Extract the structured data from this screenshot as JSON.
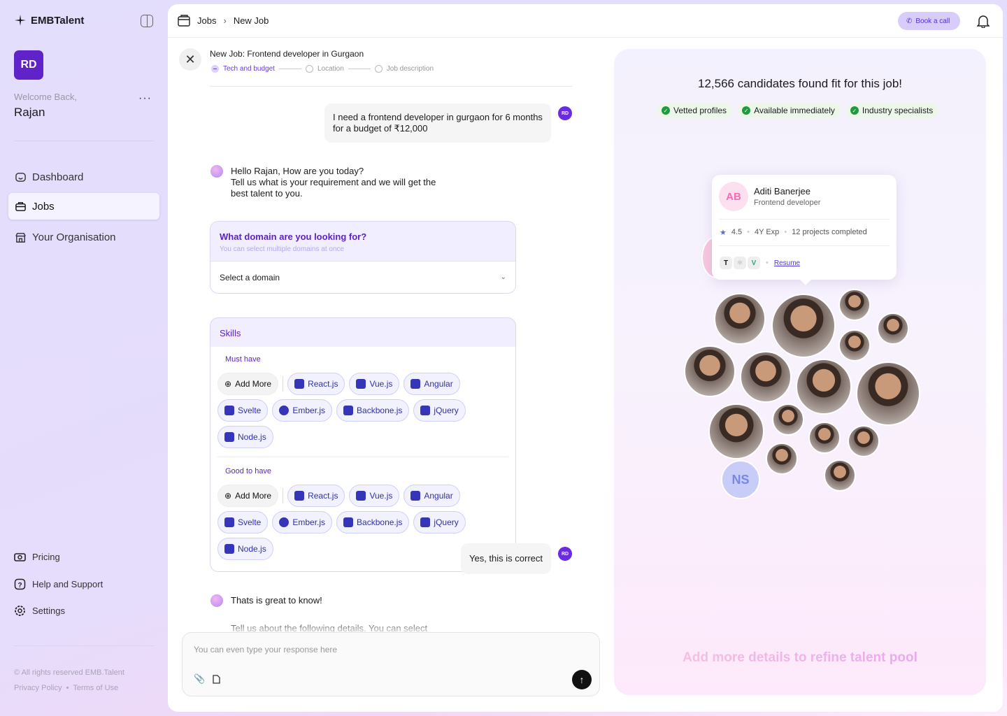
{
  "brand": "EMBTalent",
  "user": {
    "initials": "RD",
    "welcome": "Welcome Back,",
    "name": "Rajan"
  },
  "nav": [
    {
      "label": "Dashboard"
    },
    {
      "label": "Jobs"
    },
    {
      "label": "Your Organisation"
    }
  ],
  "bottom_nav": [
    {
      "label": "Pricing"
    },
    {
      "label": "Help and Support"
    },
    {
      "label": "Settings"
    }
  ],
  "footer": {
    "rights": "All rights reserved EMB.Talent",
    "privacy": "Privacy Policy",
    "terms": "Terms of Use"
  },
  "breadcrumb": [
    "Jobs",
    "New Job"
  ],
  "book_call": "Book a call",
  "job": {
    "title": "New Job: Frontend developer in Gurgaon",
    "steps": [
      "Tech and budget",
      "Location",
      "Job description"
    ],
    "active_step": 0
  },
  "chat": {
    "user_msg_1": "I need a frontend developer in gurgaon for 6 months for a budget of ₹12,000",
    "bot_msg_1": [
      "Hello Rajan, How are you today?",
      "Tell us what is your requirement and we will get the",
      "best talent to you."
    ],
    "domain": {
      "title": "What domain are you looking for?",
      "subtitle": "You can select multiple domains at once",
      "select_value": "Select a domain"
    },
    "skills": {
      "title": "Skills",
      "must_label": "Must have",
      "good_label": "Good to have",
      "add_more": "Add More",
      "items": [
        "React.js",
        "Vue.js",
        "Angular",
        "Svelte",
        "Ember.js",
        "Backbone.js",
        "jQuery",
        "Node.js"
      ]
    },
    "user_msg_2": "Yes, this is correct",
    "bot_msg_2": "Thats is great to know!",
    "bot_msg_3": "Tell us about the following details. You can select",
    "input_placeholder": "You can even type your response here"
  },
  "panel": {
    "title": "12,566 candidates found fit for this job!",
    "badges": [
      "Vetted profiles",
      "Available immediately",
      "Industry specialists"
    ],
    "candidate": {
      "initials": "AB",
      "name": "Aditi Banerjee",
      "role": "Frontend developer",
      "rating": "4.5",
      "exp": "4Y Exp",
      "projects": "12 projects completed",
      "resume": "Resume"
    },
    "extra_initials": "NS",
    "hint": "Add more details to refine talent pool"
  },
  "colors": {
    "accent": "#6023c9",
    "chip_text": "#2f30a8",
    "success": "#1f9a3f"
  }
}
